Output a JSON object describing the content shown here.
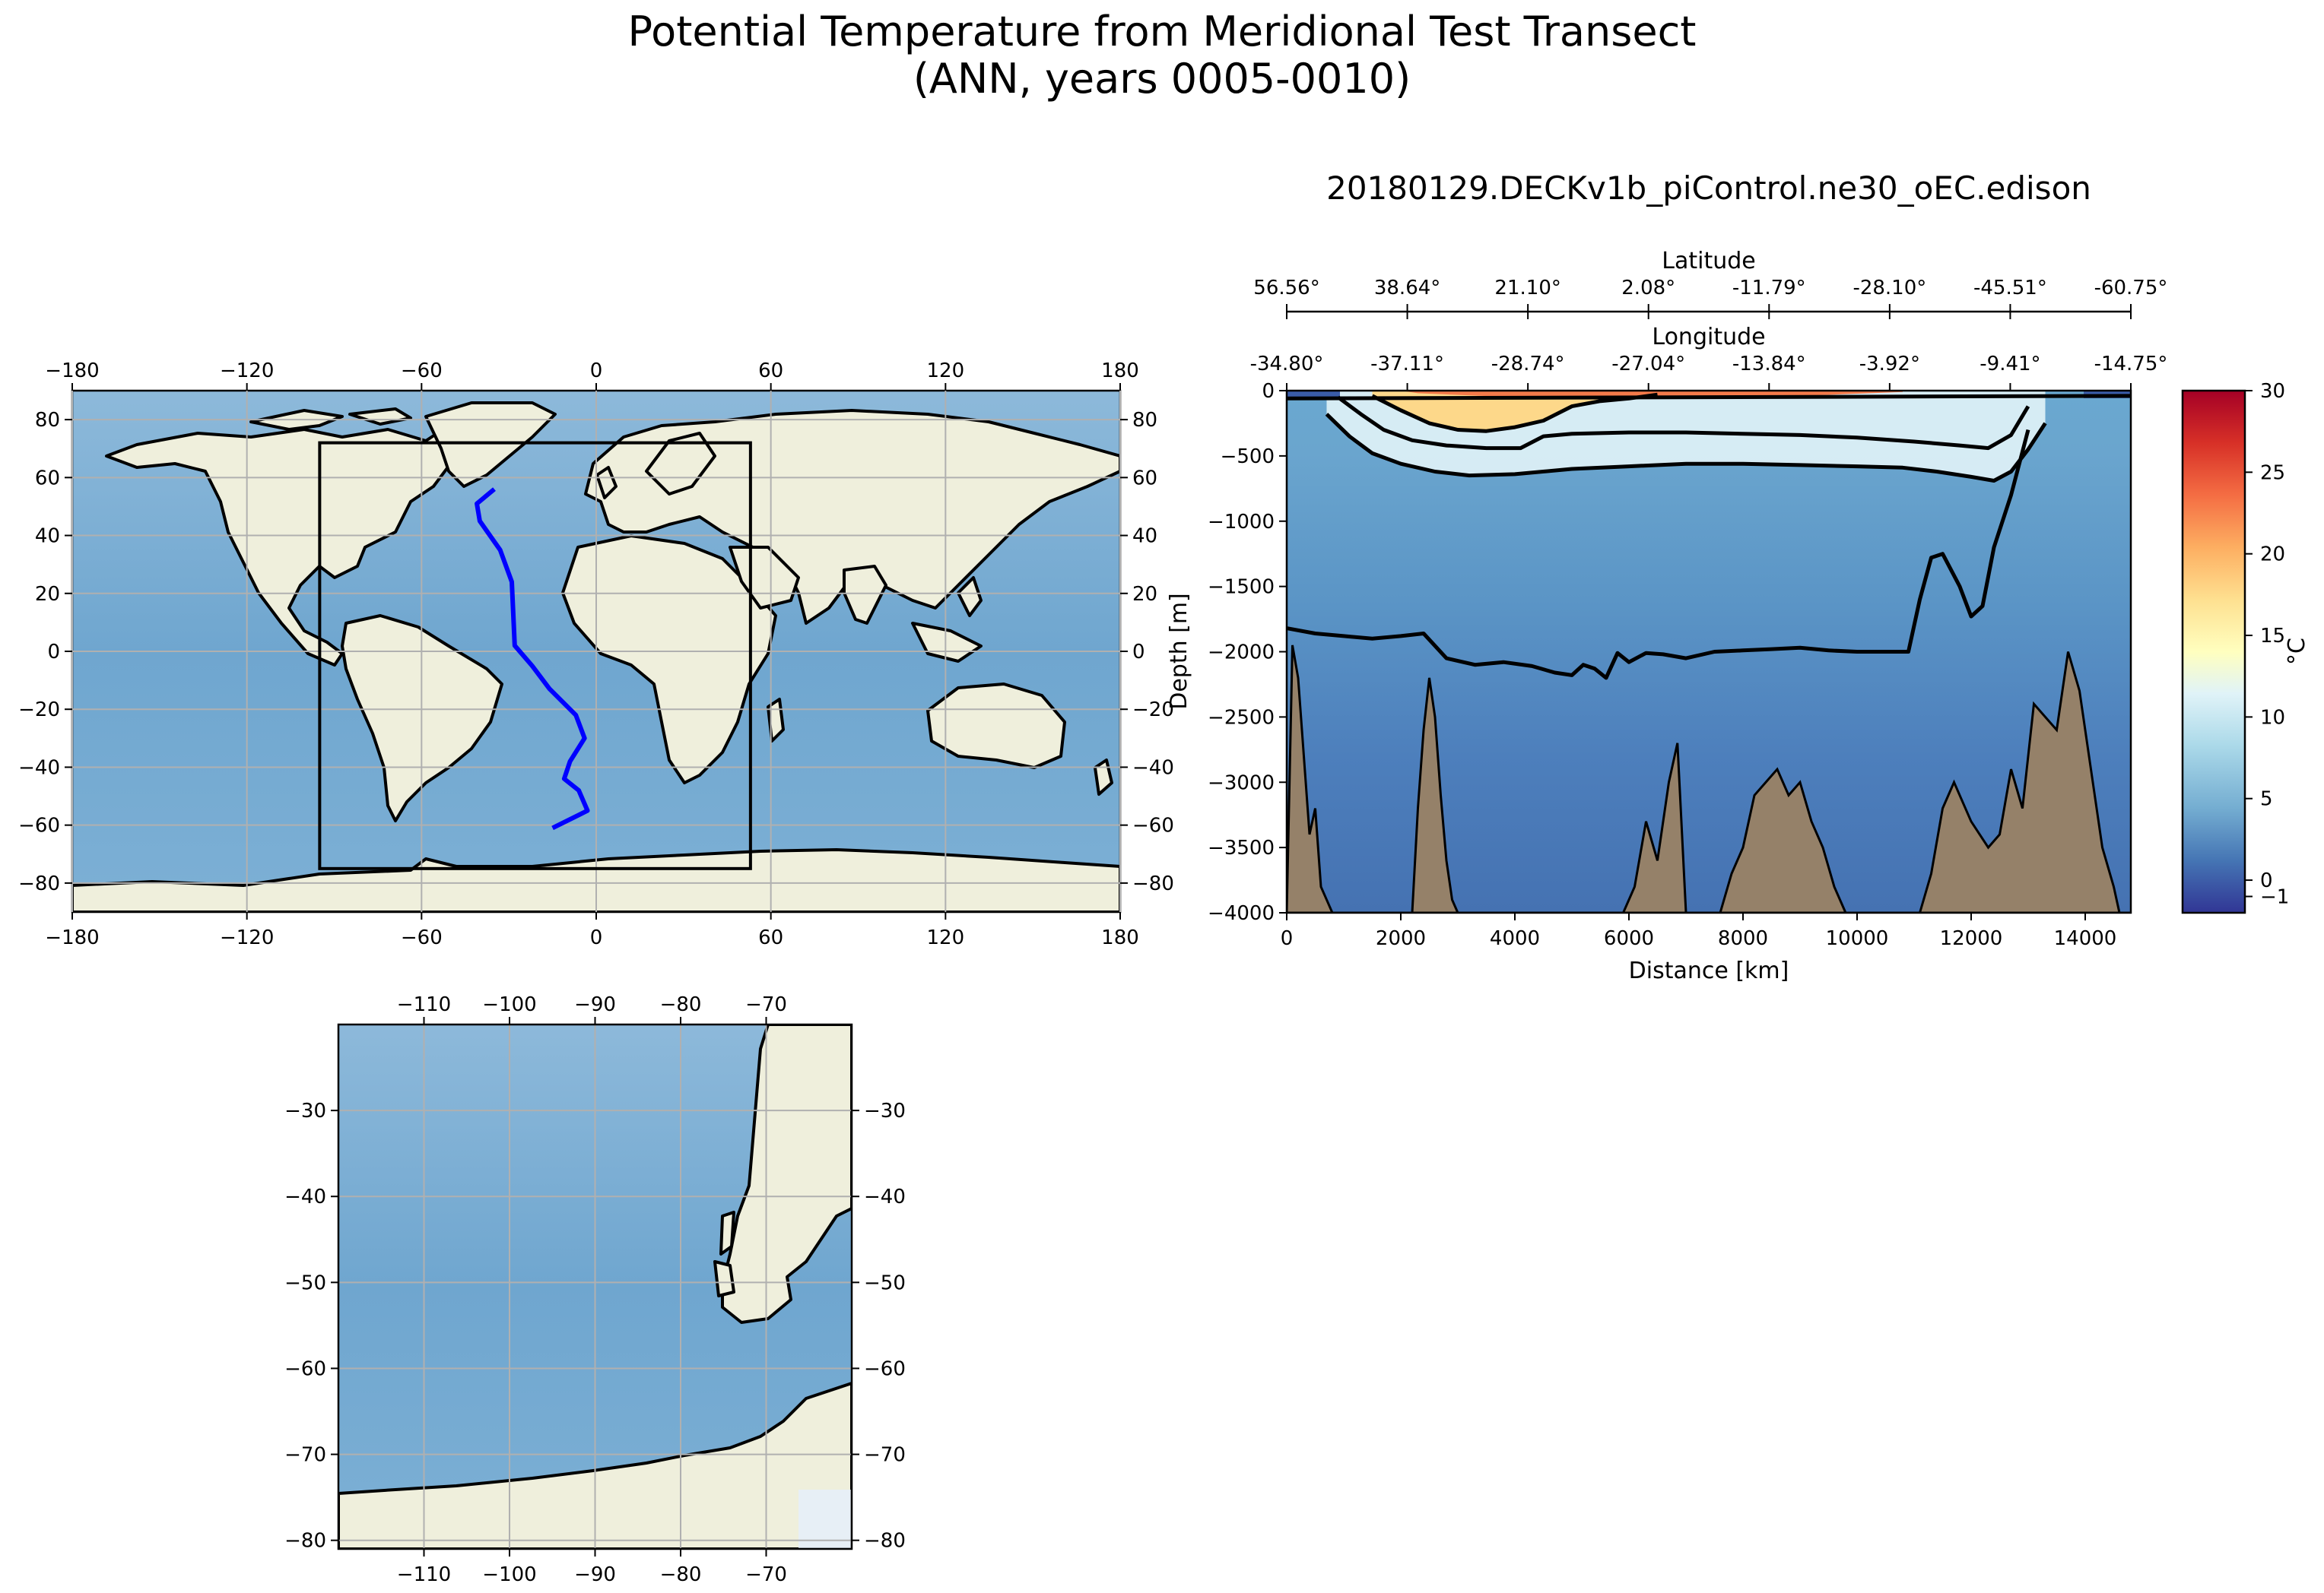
{
  "figure": {
    "title_line1": "Potential Temperature from Meridional Test Transect",
    "title_line2": "(ANN, years 0005-0010)"
  },
  "chart_data": [
    {
      "type": "map",
      "name": "global-map",
      "x_ticks": [
        -180,
        -120,
        -60,
        0,
        60,
        120,
        180
      ],
      "y_ticks": [
        -80,
        -60,
        -40,
        -20,
        0,
        20,
        40,
        60,
        80
      ],
      "xlim": [
        -180,
        180
      ],
      "ylim": [
        -90,
        90
      ],
      "region_box": {
        "lon": [
          -95,
          53
        ],
        "lat": [
          -75,
          72
        ]
      },
      "transect": {
        "lon": [
          -35,
          -41,
          -40,
          -33,
          -29,
          -28,
          -22,
          -16,
          -7,
          -4,
          -9,
          -11,
          -6,
          -3,
          -15
        ],
        "lat": [
          56,
          51,
          45,
          35,
          24,
          2,
          -5,
          -13,
          -22,
          -30,
          -38,
          -44,
          -48,
          -55,
          -61
        ]
      },
      "ocean_color": "#7aadd2",
      "land_color": "#efefdc",
      "transect_color": "#0000ff"
    },
    {
      "type": "map",
      "name": "inset-map",
      "x_ticks": [
        -110,
        -100,
        -90,
        -80,
        -70
      ],
      "y_ticks": [
        -30,
        -40,
        -50,
        -60,
        -70,
        -80
      ],
      "xlim": [
        -120,
        -60
      ],
      "ylim": [
        -81,
        -20
      ],
      "ocean_color": "#7aadd2",
      "land_color": "#efefdc"
    },
    {
      "type": "heatmap",
      "name": "transect-section",
      "title": "20180129.DECKv1b_piControl.ne30_oEC.edison",
      "xlabel": "Distance [km]",
      "ylabel": "Depth [m]",
      "top_axis1_label": "Latitude",
      "top_axis2_label": "Longitude",
      "x_ticks": [
        0,
        2000,
        4000,
        6000,
        8000,
        10000,
        12000,
        14000
      ],
      "y_ticks": [
        0,
        -500,
        -1000,
        -1500,
        -2000,
        -2500,
        -3000,
        -3500,
        -4000
      ],
      "xlim": [
        0,
        14800
      ],
      "ylim": [
        -4000,
        0
      ],
      "latitude_ticks": [
        "56.56°",
        "38.64°",
        "21.10°",
        "2.08°",
        "-11.79°",
        "-28.10°",
        "-45.51°",
        "-60.75°"
      ],
      "longitude_ticks": [
        "-34.80°",
        "-37.11°",
        "-28.74°",
        "-27.04°",
        "-13.84°",
        "-3.92°",
        "-9.41°",
        "-14.75°"
      ],
      "colorbar": {
        "label": "°C",
        "ticks": [
          0,
          5,
          10,
          15,
          20,
          25,
          30
        ],
        "range": [
          -2,
          30
        ]
      },
      "contour_2deg": {
        "x": [
          0,
          500,
          1000,
          1500,
          2000,
          2400,
          2800,
          3300,
          3800,
          4300,
          4700,
          5000,
          5200,
          5400,
          5600,
          5800,
          6000,
          6300,
          6600,
          7000,
          7500,
          8000,
          8500,
          9000,
          9500,
          10000,
          10500,
          10900,
          11100,
          11300,
          11500,
          11800,
          12000,
          12200,
          12400,
          12700,
          13000
        ],
        "depth": [
          -1820,
          -1860,
          -1880,
          -1900,
          -1880,
          -1860,
          -2050,
          -2100,
          -2080,
          -2110,
          -2160,
          -2180,
          -2100,
          -2130,
          -2200,
          -2010,
          -2080,
          -2010,
          -2020,
          -2050,
          -2000,
          -1990,
          -1980,
          -1970,
          -1990,
          -2000,
          -2000,
          -2000,
          -1600,
          -1280,
          -1250,
          -1500,
          -1730,
          -1650,
          -1200,
          -800,
          -300
        ]
      },
      "contour_5deg": {
        "x": [
          700,
          1100,
          1500,
          2000,
          2600,
          3200,
          4000,
          5000,
          6000,
          7000,
          8000,
          9000,
          10000,
          10800,
          11400,
          12000,
          12400,
          12700,
          13000,
          13300
        ],
        "depth": [
          -180,
          -350,
          -480,
          -560,
          -620,
          -650,
          -640,
          -600,
          -580,
          -560,
          -560,
          -570,
          -580,
          -590,
          -620,
          -660,
          -690,
          -620,
          -450,
          -250
        ]
      },
      "contour_10deg": {
        "x": [
          900,
          1300,
          1700,
          2200,
          2800,
          3500,
          4100,
          4500,
          5000,
          6000,
          7000,
          8000,
          9000,
          10000,
          11000,
          11800,
          12300,
          12700,
          13000
        ],
        "depth": [
          -50,
          -180,
          -300,
          -380,
          -420,
          -440,
          -440,
          -350,
          -330,
          -320,
          -320,
          -330,
          -340,
          -360,
          -390,
          -420,
          -440,
          -340,
          -120
        ]
      },
      "contour_15deg": {
        "x": [
          1500,
          2000,
          2500,
          3000,
          3500,
          4000,
          4500,
          5000,
          5500,
          6000,
          6500
        ],
        "depth": [
          -40,
          -150,
          -250,
          -300,
          -310,
          -280,
          -230,
          -120,
          -80,
          -60,
          -30
        ]
      },
      "bathymetry": {
        "x": [
          0,
          100,
          200,
          300,
          400,
          500,
          600,
          700,
          800,
          2200,
          2300,
          2400,
          2500,
          2600,
          2700,
          2800,
          2900,
          3000,
          5900,
          6100,
          6300,
          6500,
          6700,
          6850,
          7000,
          7600,
          7800,
          8000,
          8200,
          8400,
          8600,
          8800,
          9000,
          9200,
          9400,
          9600,
          9800,
          11100,
          11300,
          11500,
          11700,
          12000,
          12300,
          12500,
          12700,
          12900,
          13100,
          13300,
          13500,
          13700,
          13900,
          14100,
          14300,
          14500,
          14600,
          14800
        ],
        "depth": [
          -4000,
          -1950,
          -2200,
          -2800,
          -3400,
          -3200,
          -3800,
          -3900,
          -4000,
          -4000,
          -3200,
          -2600,
          -2200,
          -2500,
          -3100,
          -3600,
          -3900,
          -4000,
          -4000,
          -3800,
          -3300,
          -3600,
          -3000,
          -2700,
          -4000,
          -4000,
          -3700,
          -3500,
          -3100,
          -3000,
          -2900,
          -3100,
          -3000,
          -3300,
          -3500,
          -3800,
          -4000,
          -4000,
          -3700,
          -3200,
          -3000,
          -3300,
          -3500,
          -3400,
          -2900,
          -3200,
          -2400,
          -2500,
          -2600,
          -2000,
          -2300,
          -2900,
          -3500,
          -3800,
          -4000,
          -4000
        ]
      }
    }
  ]
}
